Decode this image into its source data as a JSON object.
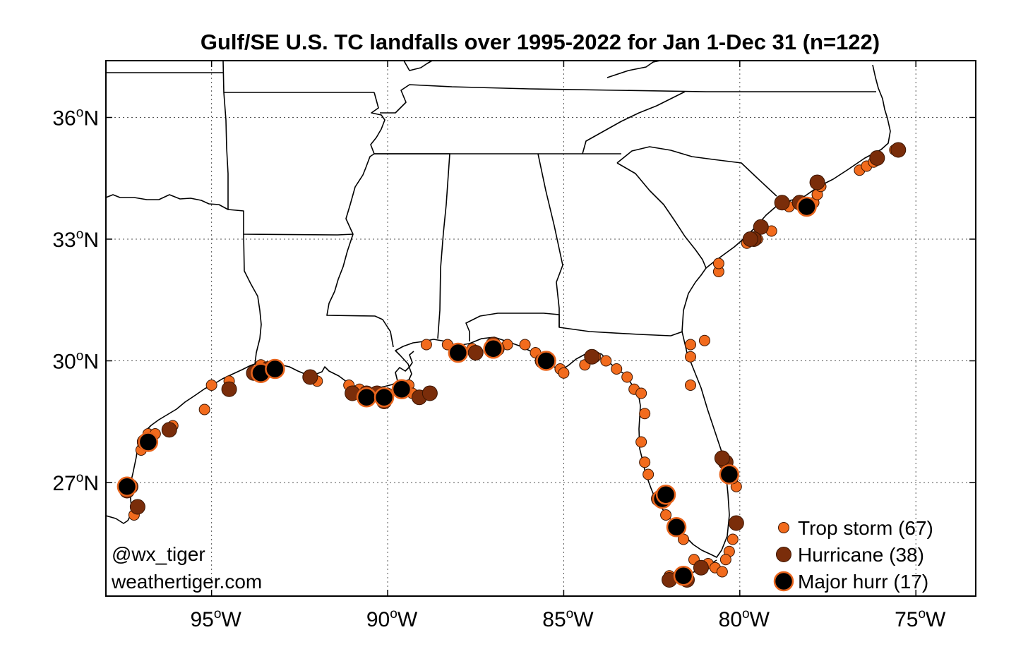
{
  "chart_data": {
    "type": "scatter",
    "title": "Gulf/SE U.S. TC landfalls over 1995-2022 for Jan 1-Dec 31 (n=122)",
    "x_axis": {
      "range": [
        -98,
        -73.3
      ],
      "ticks": [
        -95,
        -90,
        -85,
        -80,
        -75
      ],
      "tick_labels": [
        {
          "num": "95",
          "sup": "o",
          "hemi": "W"
        },
        {
          "num": "90",
          "sup": "o",
          "hemi": "W"
        },
        {
          "num": "85",
          "sup": "o",
          "hemi": "W"
        },
        {
          "num": "80",
          "sup": "o",
          "hemi": "W"
        },
        {
          "num": "75",
          "sup": "o",
          "hemi": "W"
        }
      ]
    },
    "y_axis": {
      "range": [
        24.2,
        37.4
      ],
      "ticks": [
        27,
        30,
        33,
        36
      ],
      "tick_labels": [
        {
          "num": "27",
          "sup": "o",
          "hemi": "N"
        },
        {
          "num": "30",
          "sup": "o",
          "hemi": "N"
        },
        {
          "num": "33",
          "sup": "o",
          "hemi": "N"
        },
        {
          "num": "36",
          "sup": "o",
          "hemi": "N"
        }
      ]
    },
    "grid": true,
    "legend": {
      "placement": "bottom-right",
      "entries": [
        {
          "label": "Trop storm (67)",
          "category": "ts"
        },
        {
          "label": "Hurricane (38)",
          "category": "hu"
        },
        {
          "label": "Major hurr (17)",
          "category": "mh"
        }
      ]
    },
    "colors": {
      "ts": "#f26b1d",
      "hu": "#7a2d0a",
      "mh": "#000000",
      "edge": "#e8641c",
      "border": "#000000"
    },
    "series": [
      {
        "name": "Trop storm (67)",
        "category": "ts",
        "points": [
          [
            -97.2,
            26.2
          ],
          [
            -97.0,
            27.8
          ],
          [
            -96.8,
            28.2
          ],
          [
            -96.6,
            28.2
          ],
          [
            -96.1,
            28.4
          ],
          [
            -95.2,
            28.8
          ],
          [
            -95.0,
            29.4
          ],
          [
            -94.5,
            29.5
          ],
          [
            -93.6,
            29.9
          ],
          [
            -93.3,
            29.8
          ],
          [
            -92.0,
            29.5
          ],
          [
            -90.8,
            29.3
          ],
          [
            -90.5,
            29.1
          ],
          [
            -90.0,
            29.2
          ],
          [
            -89.4,
            29.4
          ],
          [
            -88.9,
            30.4
          ],
          [
            -88.3,
            30.4
          ],
          [
            -87.6,
            30.3
          ],
          [
            -86.6,
            30.4
          ],
          [
            -86.1,
            30.4
          ],
          [
            -85.8,
            30.2
          ],
          [
            -85.1,
            29.8
          ],
          [
            -85.0,
            29.7
          ],
          [
            -84.4,
            29.9
          ],
          [
            -84.1,
            30.1
          ],
          [
            -83.8,
            30.0
          ],
          [
            -83.5,
            29.8
          ],
          [
            -83.2,
            29.6
          ],
          [
            -83.0,
            29.3
          ],
          [
            -82.8,
            29.2
          ],
          [
            -82.7,
            28.7
          ],
          [
            -82.8,
            28.0
          ],
          [
            -82.7,
            27.5
          ],
          [
            -82.6,
            27.2
          ],
          [
            -82.1,
            26.2
          ],
          [
            -81.8,
            25.9
          ],
          [
            -81.6,
            25.6
          ],
          [
            -81.3,
            25.1
          ],
          [
            -80.9,
            25.0
          ],
          [
            -80.7,
            24.9
          ],
          [
            -80.5,
            24.8
          ],
          [
            -80.3,
            25.3
          ],
          [
            -80.2,
            25.6
          ],
          [
            -80.1,
            26.9
          ],
          [
            -80.2,
            27.1
          ],
          [
            -81.4,
            29.4
          ],
          [
            -81.4,
            30.4
          ],
          [
            -81.4,
            30.1
          ],
          [
            -81.0,
            30.5
          ],
          [
            -80.6,
            32.2
          ],
          [
            -80.6,
            32.4
          ],
          [
            -79.8,
            32.9
          ],
          [
            -79.5,
            33.0
          ],
          [
            -79.1,
            33.2
          ],
          [
            -78.8,
            33.9
          ],
          [
            -78.6,
            33.8
          ],
          [
            -77.9,
            33.9
          ],
          [
            -77.8,
            34.1
          ],
          [
            -77.7,
            34.3
          ],
          [
            -76.6,
            34.7
          ],
          [
            -76.4,
            34.8
          ],
          [
            -76.2,
            34.9
          ],
          [
            -75.6,
            35.2
          ],
          [
            -82.0,
            24.7
          ],
          [
            -80.4,
            25.1
          ],
          [
            -89.3,
            29.2
          ],
          [
            -91.1,
            29.4
          ]
        ]
      },
      {
        "name": "Hurricane (38)",
        "category": "hu",
        "points": [
          [
            -97.1,
            26.4
          ],
          [
            -97.3,
            26.9
          ],
          [
            -96.2,
            28.3
          ],
          [
            -94.5,
            29.3
          ],
          [
            -93.8,
            29.7
          ],
          [
            -92.2,
            29.6
          ],
          [
            -91.0,
            29.2
          ],
          [
            -90.6,
            29.2
          ],
          [
            -90.1,
            29.0
          ],
          [
            -89.1,
            29.1
          ],
          [
            -88.0,
            30.2
          ],
          [
            -87.5,
            30.2
          ],
          [
            -87.0,
            30.4
          ],
          [
            -85.6,
            30.0
          ],
          [
            -84.2,
            30.1
          ],
          [
            -82.3,
            26.6
          ],
          [
            -81.8,
            25.9
          ],
          [
            -81.5,
            24.6
          ],
          [
            -80.4,
            27.5
          ],
          [
            -80.3,
            27.2
          ],
          [
            -80.1,
            26.0
          ],
          [
            -79.4,
            33.3
          ],
          [
            -79.6,
            33.0
          ],
          [
            -78.8,
            33.9
          ],
          [
            -78.3,
            33.9
          ],
          [
            -77.8,
            34.4
          ],
          [
            -76.1,
            35.0
          ],
          [
            -75.5,
            35.2
          ],
          [
            -80.5,
            27.6
          ],
          [
            -81.1,
            24.9
          ],
          [
            -82.0,
            24.6
          ],
          [
            -90.3,
            29.2
          ],
          [
            -93.4,
            29.8
          ],
          [
            -96.9,
            28.0
          ],
          [
            -97.4,
            26.8
          ],
          [
            -88.8,
            29.2
          ],
          [
            -86.9,
            30.3
          ],
          [
            -79.7,
            33.0
          ]
        ]
      },
      {
        "name": "Major hurr (17)",
        "category": "mh",
        "points": [
          [
            -97.4,
            26.9
          ],
          [
            -96.8,
            28.0
          ],
          [
            -93.6,
            29.7
          ],
          [
            -93.2,
            29.8
          ],
          [
            -90.6,
            29.1
          ],
          [
            -90.1,
            29.1
          ],
          [
            -89.6,
            29.3
          ],
          [
            -88.0,
            30.2
          ],
          [
            -87.0,
            30.3
          ],
          [
            -87.0,
            30.3
          ],
          [
            -85.5,
            30.0
          ],
          [
            -82.2,
            26.6
          ],
          [
            -82.1,
            26.7
          ],
          [
            -81.8,
            25.9
          ],
          [
            -81.6,
            24.7
          ],
          [
            -80.3,
            27.2
          ],
          [
            -78.1,
            33.8
          ]
        ]
      }
    ]
  },
  "credits": {
    "handle": "@wx_tiger",
    "site": "weathertiger.com"
  }
}
